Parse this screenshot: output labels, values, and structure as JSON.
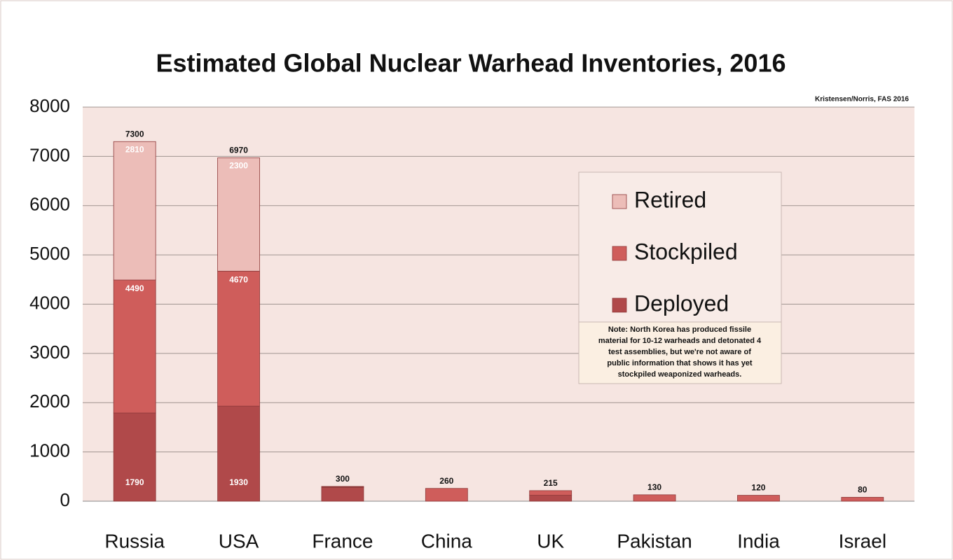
{
  "chart_data": {
    "type": "stacked_bar",
    "title": "Estimated Global Nuclear Warhead Inventories, 2016",
    "source": "Kristensen/Norris, FAS 2016",
    "categories": [
      "Russia",
      "USA",
      "France",
      "China",
      "UK",
      "Pakistan",
      "India",
      "Israel"
    ],
    "series": [
      {
        "name": "Deployed",
        "color": "#b0494a",
        "values": [
          1790,
          1930,
          280,
          0,
          120,
          0,
          0,
          0
        ]
      },
      {
        "name": "Stockpiled",
        "color": "#cf5d5b",
        "values": [
          2700,
          2740,
          10,
          260,
          95,
          130,
          120,
          80
        ]
      },
      {
        "name": "Retired",
        "color": "#ecbdb8",
        "values": [
          2810,
          2300,
          10,
          0,
          0,
          0,
          0,
          0
        ]
      }
    ],
    "totals": [
      7300,
      6970,
      300,
      260,
      215,
      130,
      120,
      80
    ],
    "stockpile_labels": [
      4490,
      4670
    ],
    "note": [
      "Note: North Korea has produced fissile",
      "material for 10-12 warheads and detonated 4",
      "test assemblies, but we're not aware of",
      "public information that shows it has yet",
      "stockpiled weaponized warheads."
    ],
    "ylim": [
      0,
      8000
    ],
    "yticks": [
      0,
      1000,
      2000,
      3000,
      4000,
      5000,
      6000,
      7000,
      8000
    ],
    "grid": true,
    "legend": "right"
  }
}
